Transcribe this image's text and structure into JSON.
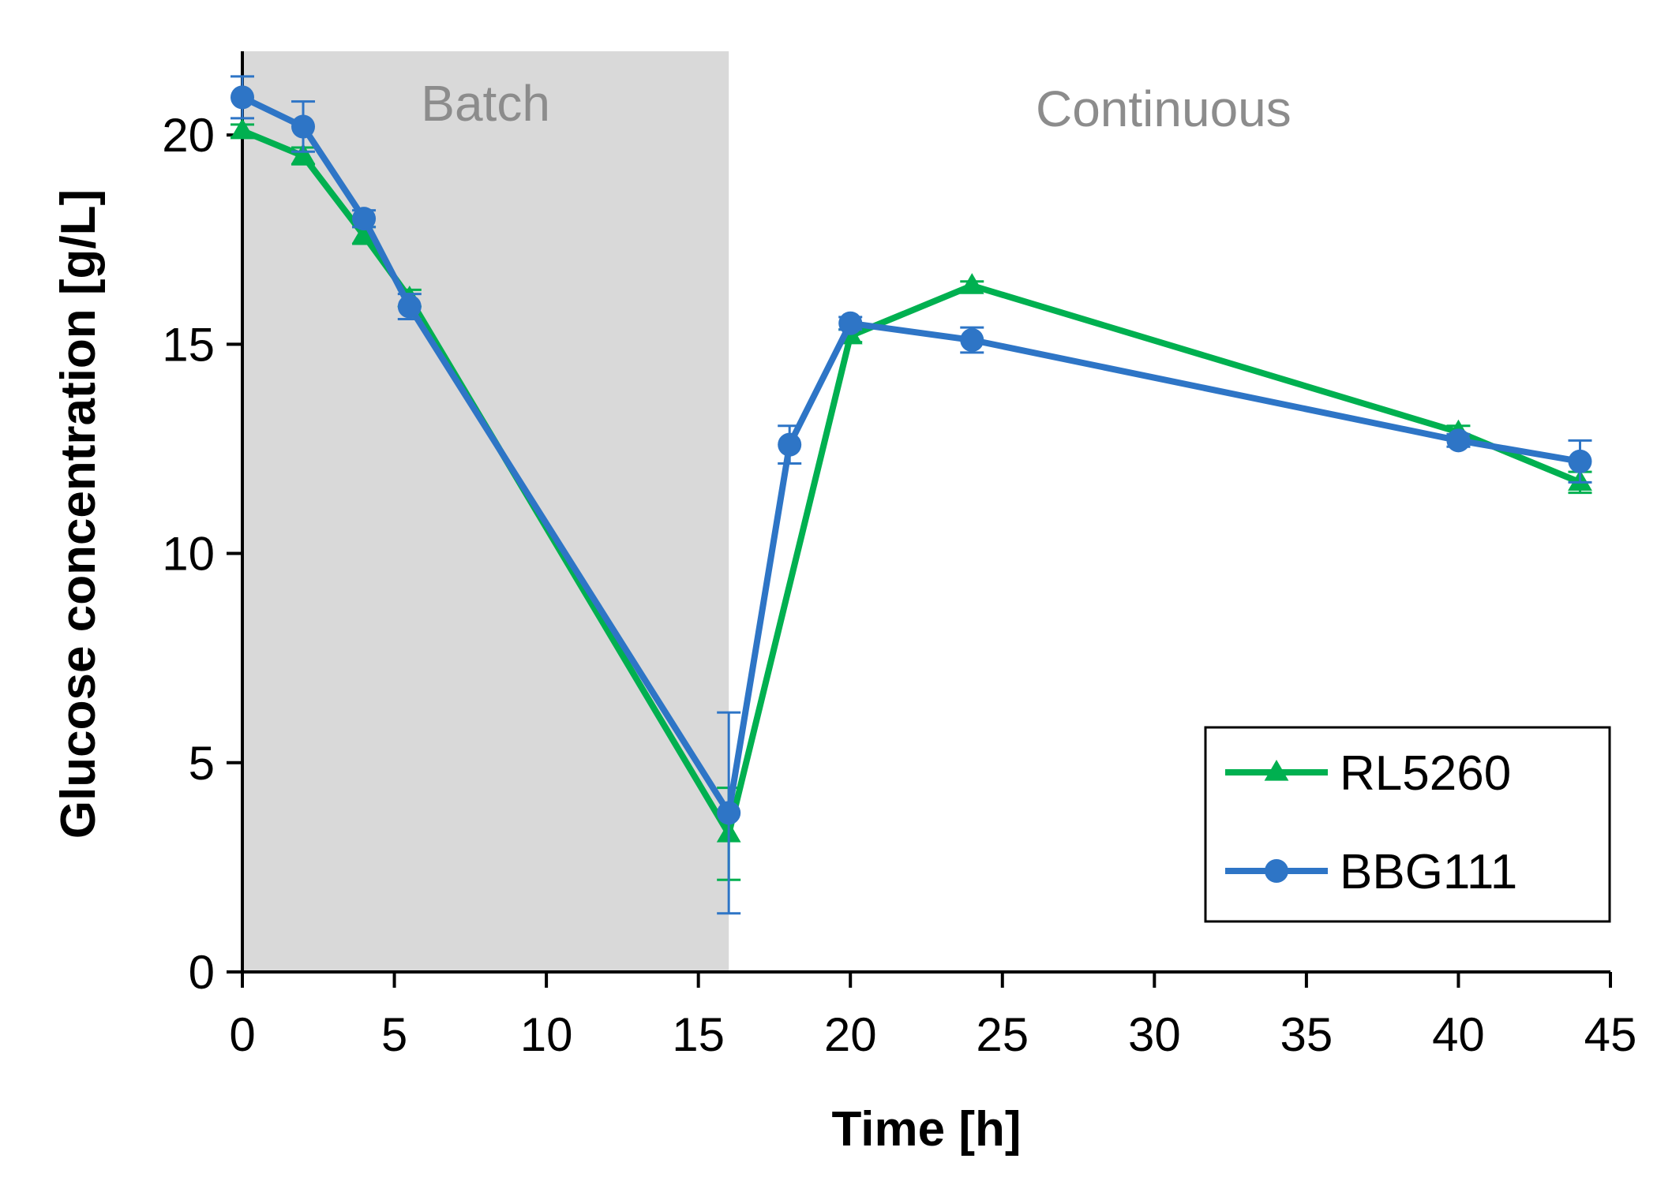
{
  "chart_data": {
    "type": "line",
    "title": "",
    "xlabel": "Time [h]",
    "ylabel": "Glucose concentration [g/L]",
    "xlim": [
      0,
      45
    ],
    "ylim": [
      0,
      22
    ],
    "xticks": [
      0,
      5,
      10,
      15,
      20,
      25,
      30,
      35,
      40,
      45
    ],
    "yticks": [
      0,
      5,
      10,
      15,
      20
    ],
    "xtick_labels": [
      "0",
      "5",
      "10",
      "15",
      "20",
      "25",
      "30",
      "35",
      "40",
      "45"
    ],
    "ytick_labels": [
      "0",
      "5",
      "10",
      "15",
      "20"
    ],
    "grid": false,
    "legend_position": "bottom-right",
    "regions": [
      {
        "label": "Batch",
        "x_start": 0,
        "x_end": 16,
        "color": "#d9d9d9"
      },
      {
        "label": "Continuous",
        "x_start": 16,
        "x_end": 45,
        "color": "#ffffff"
      }
    ],
    "series": [
      {
        "name": "RL5260",
        "color": "#00b050",
        "marker": "triangle",
        "x": [
          0,
          2,
          4,
          5.5,
          16,
          20,
          24,
          40,
          44
        ],
        "values": [
          20.1,
          19.5,
          17.6,
          16.1,
          3.3,
          15.2,
          16.4,
          12.9,
          11.7
        ],
        "error": [
          0.15,
          0.2,
          0.2,
          0.2,
          1.1,
          0.15,
          0.1,
          0.15,
          0.25
        ]
      },
      {
        "name": "BBG111",
        "color": "#2e75c6",
        "marker": "circle",
        "x": [
          0,
          2,
          4,
          5.5,
          16,
          18,
          20,
          24,
          40,
          44
        ],
        "values": [
          20.9,
          20.2,
          18.0,
          15.9,
          3.8,
          12.6,
          15.5,
          15.1,
          12.7,
          12.2
        ],
        "error": [
          0.5,
          0.6,
          0.2,
          0.3,
          2.4,
          0.45,
          0.15,
          0.3,
          0.15,
          0.5
        ]
      }
    ]
  }
}
